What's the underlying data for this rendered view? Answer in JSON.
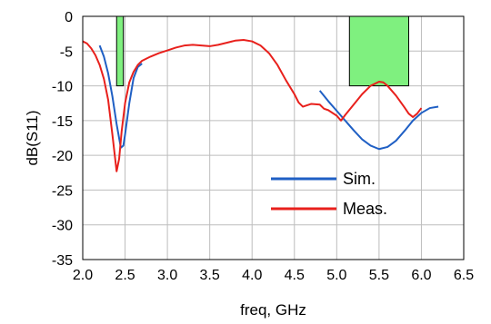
{
  "chart_data": {
    "type": "line",
    "xlabel": "freq, GHz",
    "ylabel": "dB(S11)",
    "xlim": [
      2.0,
      6.5
    ],
    "ylim": [
      -35,
      0
    ],
    "x_ticks": [
      2.0,
      2.5,
      3.0,
      3.5,
      4.0,
      4.5,
      5.0,
      5.5,
      6.0,
      6.5
    ],
    "x_tick_labels": [
      "2.0",
      "2.5",
      "3.0",
      "3.5",
      "4.0",
      "4.5",
      "5.0",
      "5.5",
      "6.0",
      "6.5"
    ],
    "y_ticks": [
      0,
      -5,
      -10,
      -15,
      -20,
      -25,
      -30,
      -35
    ],
    "y_tick_labels": [
      "0",
      "-5",
      "-10",
      "-15",
      "-20",
      "-25",
      "-30",
      "-35"
    ],
    "grid": true,
    "legend_position": "center-right",
    "bands": [
      {
        "x": [
          2.4,
          2.48
        ],
        "y": [
          -10,
          0
        ],
        "color": "#7ff07f"
      },
      {
        "x": [
          5.15,
          5.85
        ],
        "y": [
          -10,
          0
        ],
        "color": "#7ff07f"
      }
    ],
    "series": [
      {
        "name": "Sim.",
        "color": "#1f5fc4",
        "points": [
          [
            2.2,
            -4.2
          ],
          [
            2.25,
            -5.8
          ],
          [
            2.3,
            -8.2
          ],
          [
            2.35,
            -11.5
          ],
          [
            2.4,
            -15.5
          ],
          [
            2.45,
            -18.9
          ],
          [
            2.48,
            -18.6
          ],
          [
            2.5,
            -17.0
          ],
          [
            2.55,
            -12.5
          ],
          [
            2.6,
            -8.9
          ],
          [
            2.65,
            -7.3
          ],
          [
            2.7,
            -6.8
          ],
          null,
          [
            4.8,
            -10.7
          ],
          [
            4.9,
            -12.2
          ],
          [
            5.0,
            -13.6
          ],
          [
            5.1,
            -15.0
          ],
          [
            5.2,
            -16.4
          ],
          [
            5.3,
            -17.7
          ],
          [
            5.4,
            -18.6
          ],
          [
            5.5,
            -19.1
          ],
          [
            5.6,
            -18.8
          ],
          [
            5.7,
            -17.9
          ],
          [
            5.8,
            -16.5
          ],
          [
            5.9,
            -15.0
          ],
          [
            6.0,
            -13.9
          ],
          [
            6.1,
            -13.2
          ],
          [
            6.2,
            -13.0
          ]
        ]
      },
      {
        "name": "Meas.",
        "color": "#e8201c",
        "points": [
          [
            2.0,
            -3.6
          ],
          [
            2.05,
            -3.9
          ],
          [
            2.1,
            -4.6
          ],
          [
            2.15,
            -5.6
          ],
          [
            2.2,
            -7.0
          ],
          [
            2.25,
            -9.0
          ],
          [
            2.3,
            -12.0
          ],
          [
            2.35,
            -17.0
          ],
          [
            2.4,
            -22.3
          ],
          [
            2.43,
            -20.5
          ],
          [
            2.46,
            -16.5
          ],
          [
            2.5,
            -12.5
          ],
          [
            2.55,
            -9.5
          ],
          [
            2.6,
            -8.0
          ],
          [
            2.65,
            -7.0
          ],
          [
            2.7,
            -6.4
          ],
          [
            2.8,
            -5.8
          ],
          [
            2.9,
            -5.3
          ],
          [
            3.0,
            -4.9
          ],
          [
            3.1,
            -4.5
          ],
          [
            3.2,
            -4.2
          ],
          [
            3.3,
            -4.1
          ],
          [
            3.4,
            -4.2
          ],
          [
            3.5,
            -4.3
          ],
          [
            3.6,
            -4.1
          ],
          [
            3.7,
            -3.8
          ],
          [
            3.8,
            -3.5
          ],
          [
            3.9,
            -3.4
          ],
          [
            4.0,
            -3.6
          ],
          [
            4.1,
            -4.2
          ],
          [
            4.2,
            -5.3
          ],
          [
            4.3,
            -7.0
          ],
          [
            4.4,
            -9.2
          ],
          [
            4.5,
            -11.2
          ],
          [
            4.55,
            -12.4
          ],
          [
            4.6,
            -13.0
          ],
          [
            4.7,
            -12.6
          ],
          [
            4.8,
            -12.7
          ],
          [
            4.85,
            -13.3
          ],
          [
            4.9,
            -13.5
          ],
          [
            5.0,
            -14.3
          ],
          [
            5.05,
            -15.0
          ],
          [
            5.1,
            -14.2
          ],
          [
            5.2,
            -12.7
          ],
          [
            5.3,
            -11.2
          ],
          [
            5.4,
            -10.0
          ],
          [
            5.5,
            -9.4
          ],
          [
            5.55,
            -9.5
          ],
          [
            5.6,
            -10.0
          ],
          [
            5.7,
            -11.4
          ],
          [
            5.8,
            -13.1
          ],
          [
            5.85,
            -14.0
          ],
          [
            5.9,
            -14.5
          ],
          [
            5.95,
            -14.0
          ],
          [
            6.0,
            -13.2
          ]
        ]
      }
    ]
  }
}
